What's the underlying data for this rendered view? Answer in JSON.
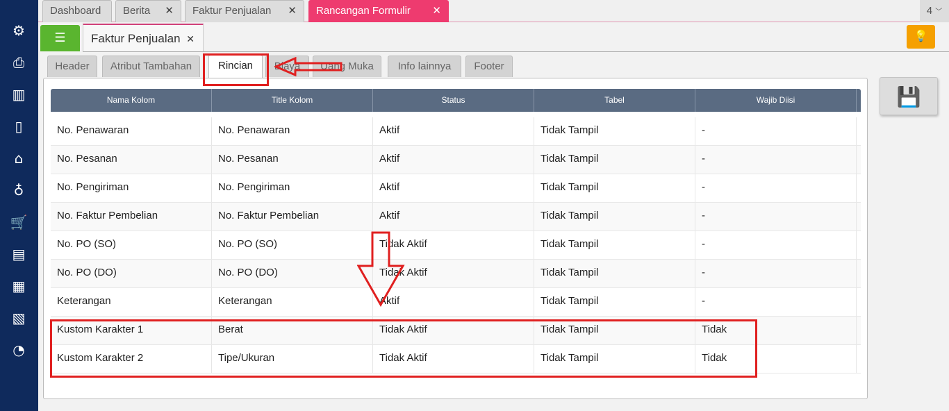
{
  "sidebar": {
    "icons": [
      "gear-icon",
      "cashier-icon",
      "building-icon",
      "book-icon",
      "bank-icon",
      "money-bag-icon",
      "cart-icon",
      "purchase-icon",
      "factory-icon",
      "tax-icon",
      "report-icon"
    ]
  },
  "top_tabs": [
    {
      "label": "Dashboard"
    },
    {
      "label": "Berita"
    },
    {
      "label": "Faktur Penjualan"
    },
    {
      "label": "Rancangan Formulir",
      "active": true
    }
  ],
  "tab_count": "4",
  "document_tab": "Faktur Penjualan",
  "sub_tabs": [
    "Header",
    "Atribut Tambahan",
    "Rincian",
    "Biaya",
    "Uang Muka",
    "Info lainnya",
    "Footer"
  ],
  "active_sub_tab": "Rincian",
  "table": {
    "columns": [
      "Nama Kolom",
      "Title Kolom",
      "Status",
      "Tabel",
      "Wajib Diisi"
    ],
    "rows": [
      [
        "No. Penawaran",
        "No. Penawaran",
        "Aktif",
        "Tidak Tampil",
        "-"
      ],
      [
        "No. Pesanan",
        "No. Pesanan",
        "Aktif",
        "Tidak Tampil",
        "-"
      ],
      [
        "No. Pengiriman",
        "No. Pengiriman",
        "Aktif",
        "Tidak Tampil",
        "-"
      ],
      [
        "No. Faktur Pembelian",
        "No. Faktur Pembelian",
        "Aktif",
        "Tidak Tampil",
        "-"
      ],
      [
        "No. PO (SO)",
        "No. PO (SO)",
        "Tidak Aktif",
        "Tidak Tampil",
        "-"
      ],
      [
        "No. PO (DO)",
        "No. PO (DO)",
        "Tidak Aktif",
        "Tidak Tampil",
        "-"
      ],
      [
        "Keterangan",
        "Keterangan",
        "Aktif",
        "Tidak Tampil",
        "-"
      ],
      [
        "Kustom Karakter 1",
        "Berat",
        "Tidak Aktif",
        "Tidak Tampil",
        "Tidak"
      ],
      [
        "Kustom Karakter 2",
        "Tipe/Ukuran",
        "Tidak Aktif",
        "Tidak Tampil",
        "Tidak"
      ]
    ]
  },
  "colors": {
    "sidebar": "#0f2a5c",
    "active_tab": "#ee3b6f",
    "menu_button": "#5ab52f",
    "hint_button": "#f5a000",
    "table_header": "#5a6b82",
    "annotation": "#e02020"
  }
}
